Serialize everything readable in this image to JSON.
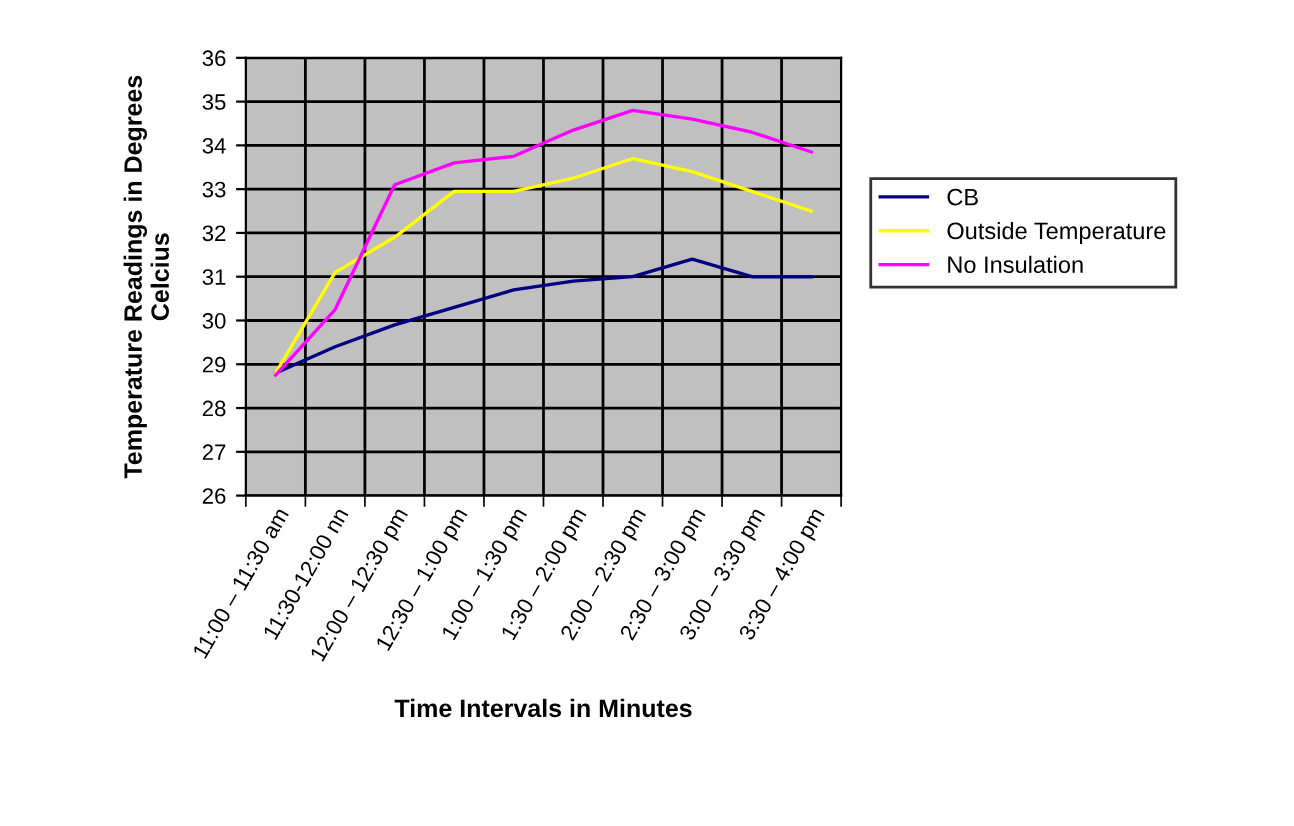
{
  "chart_data": {
    "type": "line",
    "xlabel": "Time Intervals in Minutes",
    "ylabel": "Temperature Readings in Degrees\nCelcius",
    "categories": [
      "11:00 – 11:30 am",
      "11:30-12:00 nn",
      "12:00 – 12:30 pm",
      "12:30 – 1:00 pm",
      "1:00 – 1:30 pm",
      "1:30 – 2:00 pm",
      "2:00 – 2:30 pm",
      "2:30 – 3:00 pm",
      "3:00 – 3:30 pm",
      "3:30 – 4:00 pm"
    ],
    "series": [
      {
        "name": "CB",
        "color": "#000080",
        "values": [
          28.8,
          29.4,
          29.9,
          30.3,
          30.7,
          30.9,
          31.0,
          31.4,
          31.0,
          31.0
        ]
      },
      {
        "name": "Outside Temperature",
        "color": "#ffff00",
        "values": [
          28.8,
          31.1,
          31.9,
          32.95,
          32.95,
          33.25,
          33.7,
          33.4,
          32.95,
          32.5
        ]
      },
      {
        "name": "No Insulation",
        "color": "#ff00ff",
        "values": [
          28.75,
          30.25,
          33.1,
          33.6,
          33.75,
          34.35,
          34.8,
          34.6,
          34.3,
          33.85
        ]
      }
    ],
    "ylim": [
      26,
      36
    ],
    "yticks": [
      26,
      27,
      28,
      29,
      30,
      31,
      32,
      33,
      34,
      35,
      36
    ],
    "grid": true,
    "legend": "right",
    "marker": "none",
    "line_style": "solid"
  }
}
